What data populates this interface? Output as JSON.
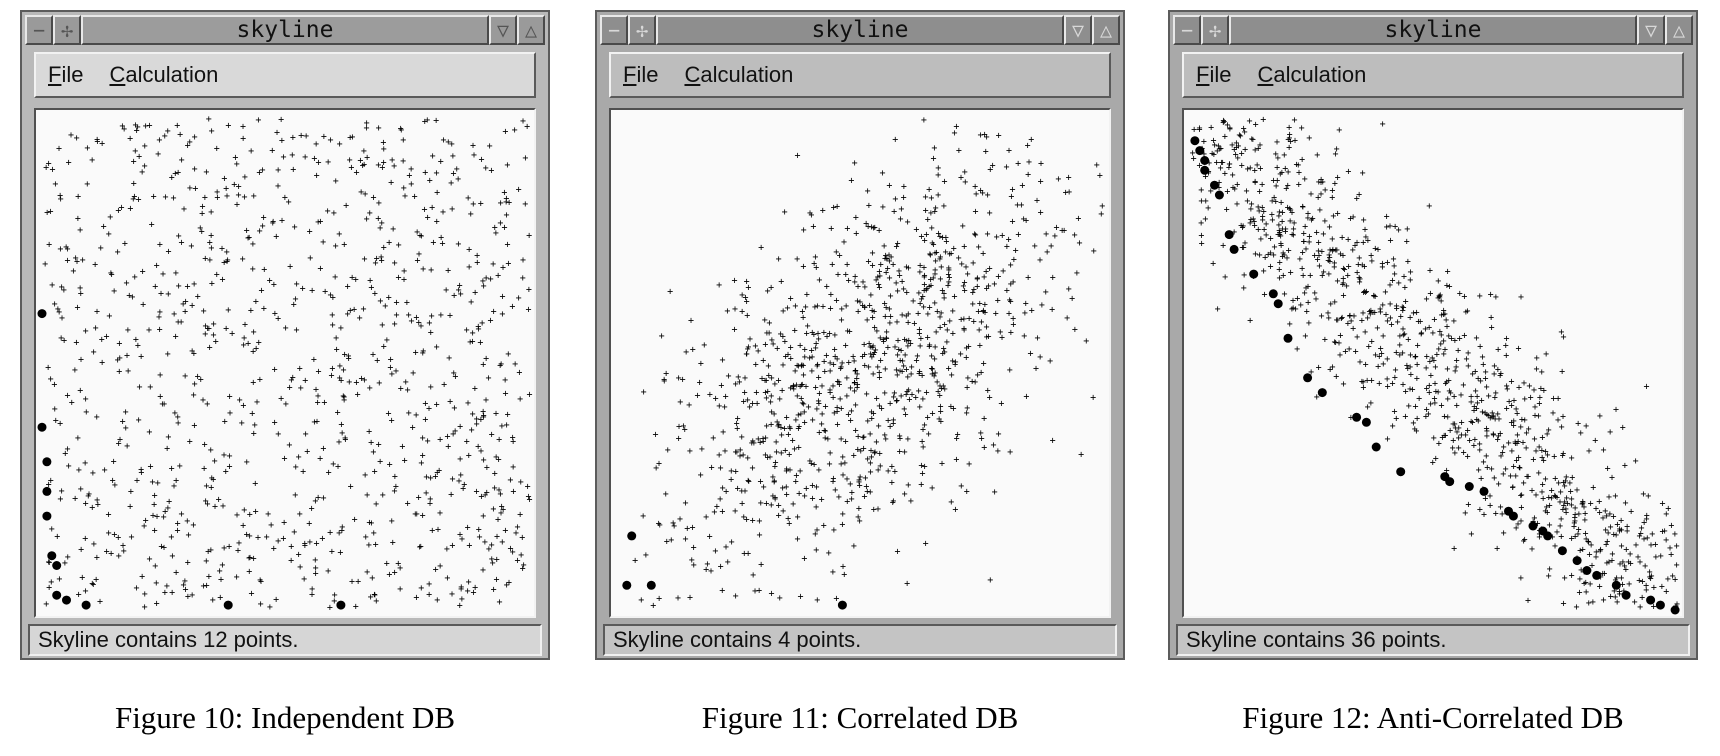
{
  "windows": [
    {
      "title": "skyline",
      "menu": [
        {
          "mnemonic": "F",
          "rest": "ile"
        },
        {
          "mnemonic": "C",
          "rest": "alculation"
        }
      ],
      "status": "Skyline contains 12 points.",
      "caption": "Figure 10: Independent DB",
      "state": "active"
    },
    {
      "title": "skyline",
      "menu": [
        {
          "mnemonic": "F",
          "rest": "ile"
        },
        {
          "mnemonic": "C",
          "rest": "alculation"
        }
      ],
      "status": "Skyline contains 4 points.",
      "caption": "Figure 11: Correlated DB",
      "state": "inactive"
    },
    {
      "title": "skyline",
      "menu": [
        {
          "mnemonic": "F",
          "rest": "ile"
        },
        {
          "mnemonic": "C",
          "rest": "alculation"
        }
      ],
      "status": "Skyline contains 36 points.",
      "caption": "Figure 12: Anti-Correlated DB",
      "state": "inactive"
    }
  ],
  "icons": {
    "minimize": "minimize-icon",
    "move": "move-icon",
    "shade": "shade-icon",
    "maximize": "maximize-icon"
  },
  "chart_data": [
    {
      "type": "scatter",
      "distribution": "independent",
      "xlim": [
        0,
        1
      ],
      "ylim": [
        0,
        1
      ],
      "point_count": 1000,
      "skyline": [
        [
          0.0,
          0.6
        ],
        [
          0.0,
          0.37
        ],
        [
          0.01,
          0.3
        ],
        [
          0.01,
          0.24
        ],
        [
          0.01,
          0.19
        ],
        [
          0.02,
          0.11
        ],
        [
          0.03,
          0.09
        ],
        [
          0.03,
          0.03
        ],
        [
          0.05,
          0.02
        ],
        [
          0.09,
          0.01
        ],
        [
          0.38,
          0.01
        ],
        [
          0.61,
          0.01
        ]
      ],
      "point_color": "#000000"
    },
    {
      "type": "scatter",
      "distribution": "correlated",
      "xlim": [
        0,
        1
      ],
      "ylim": [
        0,
        1
      ],
      "point_count": 1000,
      "skyline": [
        [
          0.03,
          0.15
        ],
        [
          0.02,
          0.05
        ],
        [
          0.07,
          0.05
        ],
        [
          0.46,
          0.01
        ]
      ],
      "point_color": "#000000"
    },
    {
      "type": "scatter",
      "distribution": "anti-correlated",
      "xlim": [
        0,
        1
      ],
      "ylim": [
        0,
        1
      ],
      "point_count": 1000,
      "skyline": [
        [
          0.01,
          0.95
        ],
        [
          0.02,
          0.93
        ],
        [
          0.03,
          0.91
        ],
        [
          0.03,
          0.89
        ],
        [
          0.05,
          0.86
        ],
        [
          0.06,
          0.84
        ],
        [
          0.08,
          0.76
        ],
        [
          0.09,
          0.73
        ],
        [
          0.13,
          0.68
        ],
        [
          0.17,
          0.64
        ],
        [
          0.18,
          0.62
        ],
        [
          0.2,
          0.55
        ],
        [
          0.24,
          0.47
        ],
        [
          0.27,
          0.44
        ],
        [
          0.34,
          0.39
        ],
        [
          0.36,
          0.38
        ],
        [
          0.38,
          0.33
        ],
        [
          0.43,
          0.28
        ],
        [
          0.52,
          0.27
        ],
        [
          0.53,
          0.26
        ],
        [
          0.57,
          0.25
        ],
        [
          0.6,
          0.24
        ],
        [
          0.65,
          0.2
        ],
        [
          0.66,
          0.19
        ],
        [
          0.7,
          0.17
        ],
        [
          0.72,
          0.16
        ],
        [
          0.73,
          0.15
        ],
        [
          0.76,
          0.12
        ],
        [
          0.79,
          0.1
        ],
        [
          0.81,
          0.08
        ],
        [
          0.83,
          0.07
        ],
        [
          0.87,
          0.05
        ],
        [
          0.89,
          0.03
        ],
        [
          0.94,
          0.02
        ],
        [
          0.96,
          0.01
        ],
        [
          0.99,
          0.0
        ]
      ],
      "point_color": "#000000"
    }
  ]
}
